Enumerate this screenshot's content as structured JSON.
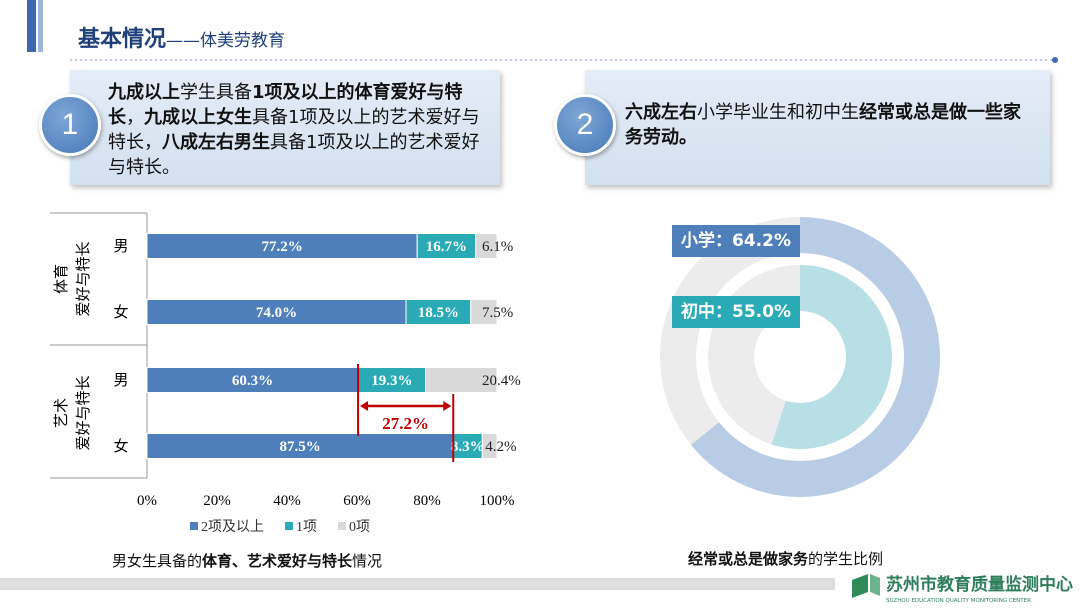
{
  "header": {
    "title": "基本情况",
    "subtitle": "——体美劳教育"
  },
  "panels": [
    {
      "number": "1",
      "runs": [
        {
          "text": "九成以上",
          "bold": true
        },
        {
          "text": "学生具备",
          "bold": false
        },
        {
          "text": "1项及以上的体育爱好与特长",
          "bold": true
        },
        {
          "text": "，",
          "bold": false
        },
        {
          "text": "九成以上女生",
          "bold": true
        },
        {
          "text": "具备1项及以上的艺术爱好与特长，",
          "bold": false
        },
        {
          "text": "八成左右男生",
          "bold": true
        },
        {
          "text": "具备1项及以上的艺术爱好与特长。",
          "bold": false
        }
      ]
    },
    {
      "number": "2",
      "runs": [
        {
          "text": "六成左右",
          "bold": true
        },
        {
          "text": "小学毕业生和初中生",
          "bold": false
        },
        {
          "text": "经常或总是做一些家务劳动。",
          "bold": true
        }
      ]
    }
  ],
  "chart_data": [
    {
      "type": "stacked-hbar",
      "groups": [
        {
          "name_lines": [
            "体育",
            "爱好与特长"
          ],
          "categories": [
            "男",
            "女"
          ]
        },
        {
          "name_lines": [
            "艺术",
            "爱好与特长"
          ],
          "categories": [
            "男",
            "女"
          ]
        }
      ],
      "series": [
        {
          "name": "2项及以上",
          "color": "#4f7fba",
          "values": [
            77.2,
            74.0,
            60.3,
            87.5
          ],
          "value_labels": [
            "77.2%",
            "74.0%",
            "60.3%",
            "87.5%"
          ]
        },
        {
          "name": "1项",
          "color": "#2aaab5",
          "values": [
            16.7,
            18.5,
            19.3,
            8.3
          ],
          "value_labels": [
            "16.7%",
            "18.5%",
            "19.3%",
            "8.3%"
          ]
        },
        {
          "name": "0项",
          "color": "#d9d9d9",
          "values": [
            6.1,
            7.5,
            20.4,
            4.2
          ],
          "value_labels": [
            "6.1%",
            "7.5%",
            "20.4%",
            "4.2%"
          ]
        }
      ],
      "xlim": [
        0,
        100
      ],
      "xticks": [
        {
          "value": 0,
          "label": "0%"
        },
        {
          "value": 20,
          "label": "20%"
        },
        {
          "value": 40,
          "label": "40%"
        },
        {
          "value": 60,
          "label": "60%"
        },
        {
          "value": 80,
          "label": "80%"
        },
        {
          "value": 100,
          "label": "100%"
        }
      ],
      "annotation": {
        "value": 27.2,
        "label": "27.2%",
        "color": "#c00000"
      },
      "caption": [
        {
          "text": "男女生具备的",
          "bold": false
        },
        {
          "text": "体育、艺术爱好与特长",
          "bold": true
        },
        {
          "text": "情况",
          "bold": false
        }
      ]
    },
    {
      "type": "donut",
      "rings": [
        {
          "value": 64.2,
          "value_label": "小学：64.2%",
          "color": "#b9cce5",
          "label_color": "#4f7fba"
        },
        {
          "value": 55.0,
          "value_label": "初中：55.0%",
          "color": "#b7dfe5",
          "label_color": "#2aaab5"
        }
      ],
      "caption": [
        {
          "text": "经常或总是做家务",
          "bold": true
        },
        {
          "text": "的学生比例",
          "bold": false
        }
      ]
    }
  ],
  "footer": {
    "logo": "苏州市教育质量监测中心",
    "logo_en": "SUZHOU EDUCATION QUALITY MONITORING CENTER"
  }
}
